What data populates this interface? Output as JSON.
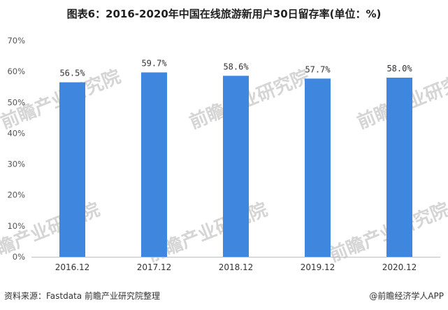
{
  "title": "图表6：2016-2020年中国在线旅游新用户30日留存率(单位：%)",
  "chart_data": {
    "type": "bar",
    "categories": [
      "2016.12",
      "2017.12",
      "2018.12",
      "2019.12",
      "2020.12"
    ],
    "series": [
      {
        "values": [
          56.5,
          59.7,
          58.6,
          57.7,
          58.0
        ]
      }
    ],
    "data_labels": [
      "56.5%",
      "59.7%",
      "58.6%",
      "57.7%",
      "58.0%"
    ],
    "yticks": [
      "0%",
      "10%",
      "20%",
      "30%",
      "40%",
      "50%",
      "60%",
      "70%"
    ],
    "ylim": [
      0,
      70
    ],
    "grid": false,
    "bar_color": "#3f86df"
  },
  "footer": {
    "source": "资料来源：Fastdata 前瞻产业研究院整理",
    "credit": "@前瞻经济学人APP"
  },
  "watermark": "前瞻产业研究院"
}
